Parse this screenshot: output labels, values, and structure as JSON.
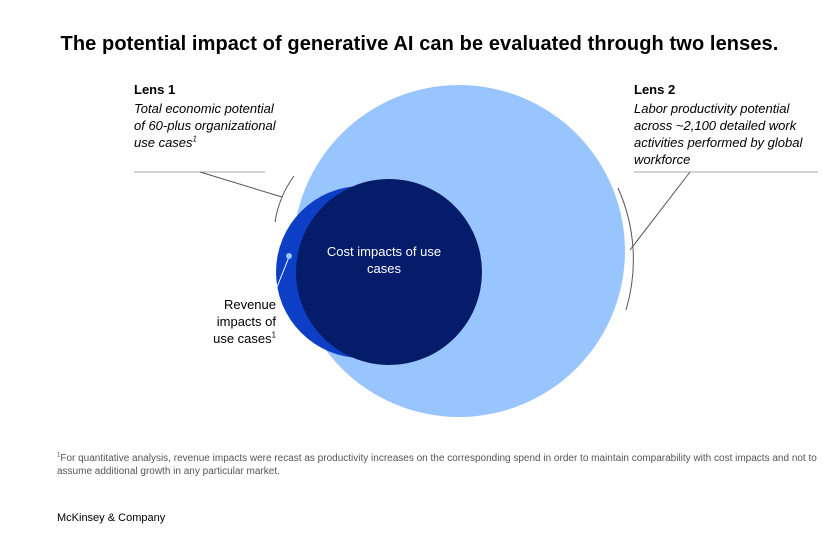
{
  "title": "The potential impact of generative AI can be evaluated through two lenses.",
  "lens1": {
    "title": "Lens 1",
    "description": "Total economic potential of 60-plus organizational use cases",
    "footnote_marker": "1"
  },
  "lens2": {
    "title": "Lens 2",
    "description": "Labor productivity potential across ~2,100 detailed work activities performed by global workforce"
  },
  "center_label": "Cost impacts of use cases",
  "revenue_label": "Revenue impacts of use cases",
  "revenue_footnote_marker": "1",
  "footnote_marker": "1",
  "footnote": "For quantitative analysis, revenue impacts were recast as productivity increases on the corresponding spend in order to maintain comparability with cost impacts and not to assume additional growth in any particular market.",
  "brand": "McKinsey & Company",
  "colors": {
    "lens2_circle": "#99C5FF",
    "revenue_crescent": "#0D3FC6",
    "cost_circle": "#051C6B",
    "leader_lines": "#555555"
  }
}
